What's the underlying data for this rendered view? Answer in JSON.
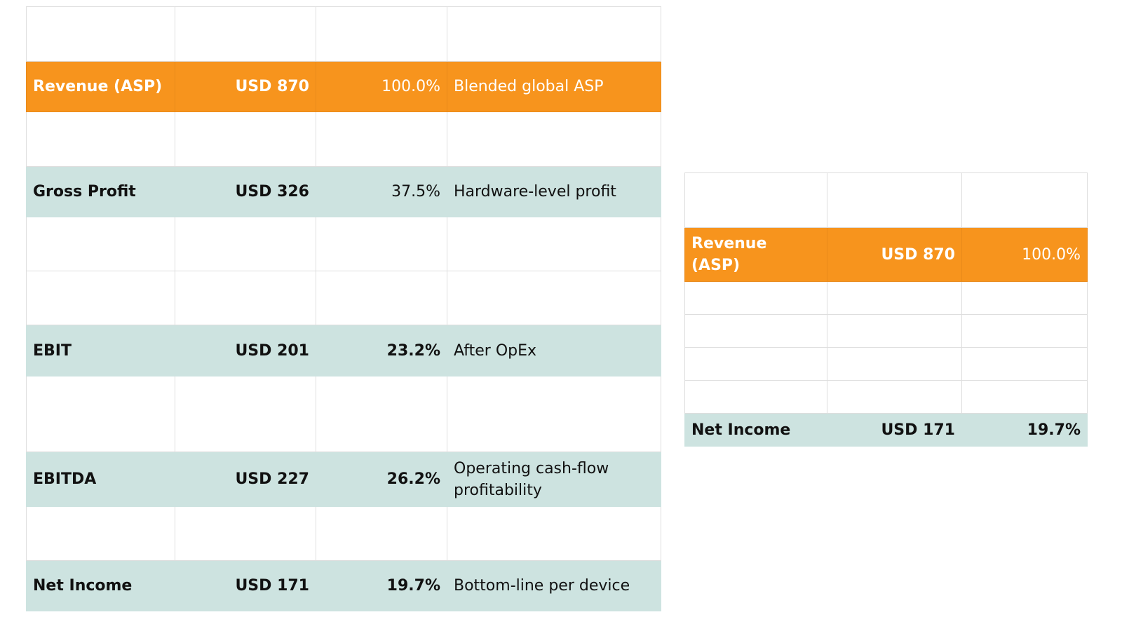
{
  "main_table": {
    "revenue": {
      "label": "Revenue (ASP)",
      "value": "USD 870",
      "margin": "100.0%",
      "note": "Blended global ASP"
    },
    "gross_profit": {
      "label": "Gross Profit",
      "value": "USD 326",
      "margin": "37.5%",
      "note": "Hardware-level profit"
    },
    "ebit": {
      "label": "EBIT",
      "value": "USD 201",
      "margin": "23.2%",
      "note": "After OpEx"
    },
    "ebitda": {
      "label": "EBITDA",
      "value": "USD 227",
      "margin": "26.2%",
      "note": "Operating cash-flow profitability"
    },
    "net_income": {
      "label": "Net Income",
      "value": "USD 171",
      "margin": "19.7%",
      "note": "Bottom-line per device"
    }
  },
  "summary_table": {
    "revenue": {
      "label": "Revenue (ASP)",
      "value": "USD 870",
      "margin": "100.0%"
    },
    "net_income": {
      "label": "Net Income",
      "value": "USD 171",
      "margin": "19.7%"
    }
  },
  "colors": {
    "highlight_orange": "#f7941d",
    "highlight_teal": "#cde3e0",
    "grid_line": "#dedede"
  }
}
